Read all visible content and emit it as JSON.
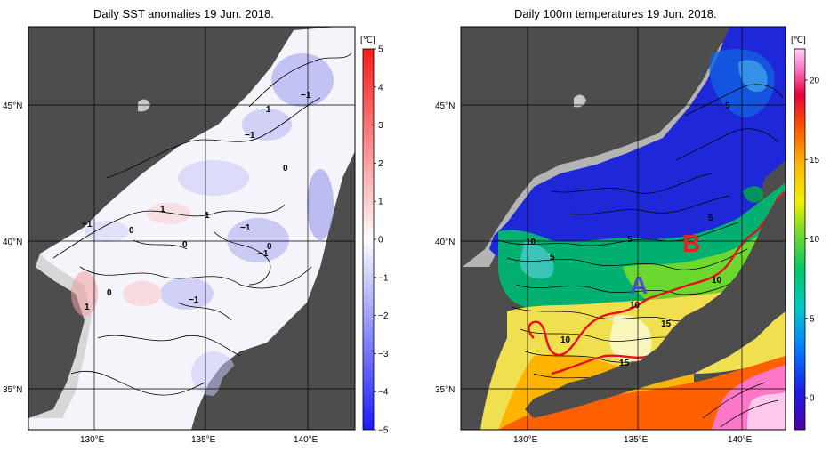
{
  "panels": [
    {
      "title": "Daily SST anomalies 19 Jun. 2018.",
      "unit": "[℃]",
      "colorbar_ticks": [
        "5",
        "4",
        "3",
        "2",
        "1",
        "0",
        "−1",
        "−2",
        "−3",
        "−4",
        "−5"
      ],
      "contour_labels": [
        "−1",
        "−1",
        "0",
        "1",
        "−1",
        "0",
        "0",
        "−1",
        "1",
        "−1",
        "−1",
        "0",
        "−1",
        "1",
        "0"
      ]
    },
    {
      "title": "Daily 100m temperatures 19 Jun. 2018.",
      "unit": "[℃]",
      "colorbar_ticks": [
        "20",
        "15",
        "10",
        "5",
        "0"
      ],
      "contour_labels": [
        "5",
        "10",
        "5",
        "5",
        "5",
        "10",
        "10",
        "15",
        "10",
        "15"
      ],
      "markers": [
        {
          "label": "A",
          "color": "#4b4bd0"
        },
        {
          "label": "B",
          "color": "#e8201e"
        }
      ]
    }
  ],
  "axes": {
    "lat_labels": [
      "45°N",
      "40°N",
      "35°N"
    ],
    "lon_labels": [
      "130°E",
      "135°E",
      "140°E"
    ]
  },
  "colors": {
    "land": "#4d4d4d",
    "coast_gray": "#b4b4b4",
    "anomaly_positive": "#f06464",
    "anomaly_negative": "#6464f0",
    "front_line": "#e8101a"
  }
}
